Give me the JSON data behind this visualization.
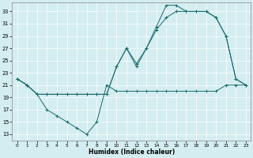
{
  "xlabel": "Humidex (Indice chaleur)",
  "bg_color": "#d4edf0",
  "line_color": "#1a6b6b",
  "grid_color": "#ffffff",
  "xlim": [
    -0.5,
    23.5
  ],
  "ylim": [
    12,
    34.5
  ],
  "yticks": [
    13,
    15,
    17,
    19,
    21,
    23,
    25,
    27,
    29,
    31,
    33
  ],
  "xticks": [
    0,
    1,
    2,
    3,
    4,
    5,
    6,
    7,
    8,
    9,
    10,
    11,
    12,
    13,
    14,
    15,
    16,
    17,
    18,
    19,
    20,
    21,
    22,
    23
  ],
  "line1_x": [
    0,
    1,
    2,
    3,
    4,
    5,
    6,
    7,
    8,
    9,
    10,
    11,
    12,
    13,
    14,
    15,
    16,
    17,
    18,
    19,
    20,
    21,
    22,
    23
  ],
  "line1_y": [
    22,
    21,
    19.5,
    17,
    16,
    15,
    14,
    13,
    15,
    21,
    20,
    20,
    20,
    20,
    20,
    20,
    20,
    20,
    20,
    20,
    20,
    21,
    21,
    21
  ],
  "line2_x": [
    0,
    1,
    2,
    3,
    4,
    5,
    6,
    7,
    8,
    9,
    10,
    11,
    12,
    13,
    14,
    15,
    16,
    17,
    18,
    19,
    20,
    21,
    22,
    23
  ],
  "line2_y": [
    22,
    21,
    19.5,
    19.5,
    19.5,
    19.5,
    19.5,
    19.5,
    19.5,
    19.5,
    24,
    27,
    24,
    27,
    30,
    32,
    33,
    33,
    33,
    33,
    32,
    29,
    22,
    21
  ],
  "line3_x": [
    0,
    1,
    2,
    3,
    4,
    5,
    6,
    7,
    8,
    9,
    10,
    11,
    12,
    13,
    14,
    15,
    16,
    17,
    18,
    19,
    20,
    21,
    22,
    23
  ],
  "line3_y": [
    22,
    21,
    19.5,
    19.5,
    19.5,
    19.5,
    19.5,
    19.5,
    19.5,
    19.5,
    24,
    27,
    24.5,
    27,
    30.5,
    34,
    34,
    33,
    33,
    33,
    32,
    29,
    22,
    21
  ]
}
